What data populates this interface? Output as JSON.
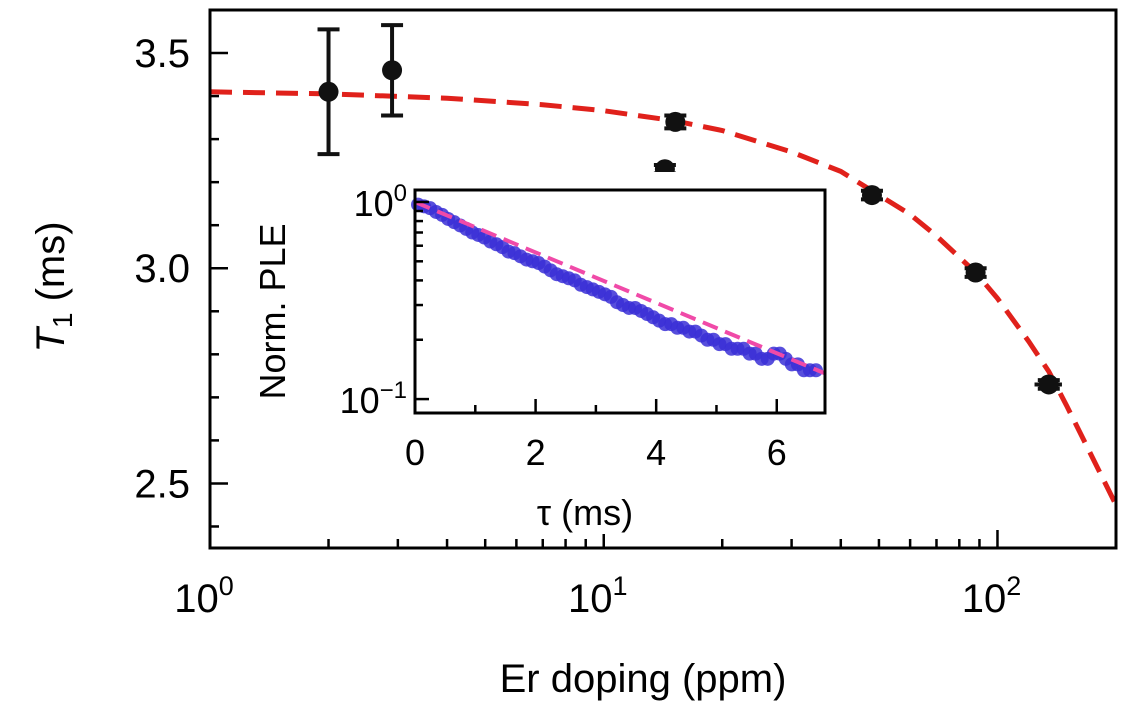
{
  "chart_data": [
    {
      "type": "scatter",
      "xlabel": "Er doping (ppm)",
      "ylabel": "T",
      "ylabel_sub": "1",
      "ylabel_unit": " (ms)",
      "xscale": "log",
      "xlim": [
        1,
        200
      ],
      "ylim": [
        2.35,
        3.6
      ],
      "x_ticks": [
        {
          "base": "10",
          "exp": "0",
          "value": 1
        },
        {
          "base": "10",
          "exp": "1",
          "value": 10
        },
        {
          "base": "10",
          "exp": "2",
          "value": 100
        }
      ],
      "y_ticks": [
        {
          "label": "2.5",
          "value": 2.5
        },
        {
          "label": "3.0",
          "value": 3.0
        },
        {
          "label": "3.5",
          "value": 3.5
        }
      ],
      "series": [
        {
          "kind": "points",
          "color": "#111111",
          "x": [
            2.0,
            2.9,
            14.3,
            15.2,
            48,
            88,
            135
          ],
          "y": [
            3.41,
            3.46,
            3.23,
            3.34,
            3.17,
            2.99,
            2.73
          ],
          "yerr": [
            0.145,
            0.105,
            0.01,
            0.015,
            0.01,
            0.01,
            0.01
          ],
          "xerr_frac": [
            0,
            0,
            0.05,
            0.05,
            0.05,
            0.05,
            0.08
          ]
        },
        {
          "kind": "fit",
          "color": "#e0211b",
          "x": [
            1,
            2,
            4,
            7,
            10,
            15,
            20,
            30,
            40,
            50,
            60,
            70,
            88,
            100,
            120,
            135,
            150,
            170,
            200
          ],
          "y": [
            3.41,
            3.405,
            3.395,
            3.38,
            3.366,
            3.343,
            3.32,
            3.27,
            3.225,
            3.17,
            3.125,
            3.075,
            2.99,
            2.93,
            2.83,
            2.76,
            2.68,
            2.58,
            2.45
          ]
        }
      ]
    },
    {
      "type": "scatter",
      "inset": true,
      "xlabel": "τ (ms)",
      "ylabel": "Norm. PLE",
      "yscale": "log",
      "xlim": [
        0,
        6.8
      ],
      "ylim": [
        0.085,
        1.15
      ],
      "x_ticks": [
        {
          "label": "0",
          "value": 0
        },
        {
          "label": "2",
          "value": 2
        },
        {
          "label": "4",
          "value": 4
        },
        {
          "label": "6",
          "value": 6
        }
      ],
      "y_ticks": [
        {
          "base": "10",
          "exp": "0",
          "value": 1
        },
        {
          "base": "10",
          "exp": "−1",
          "value": 0.1
        }
      ],
      "series": [
        {
          "kind": "points",
          "color": "#3a2fd6",
          "x": [
            0.05,
            0.15,
            0.25,
            0.35,
            0.45,
            0.55,
            0.65,
            0.75,
            0.85,
            0.95,
            1.05,
            1.15,
            1.25,
            1.35,
            1.45,
            1.55,
            1.65,
            1.75,
            1.85,
            1.95,
            2.05,
            2.15,
            2.25,
            2.35,
            2.45,
            2.55,
            2.65,
            2.75,
            2.85,
            2.95,
            3.05,
            3.15,
            3.25,
            3.35,
            3.45,
            3.55,
            3.65,
            3.75,
            3.85,
            3.95,
            4.05,
            4.15,
            4.25,
            4.35,
            4.45,
            4.55,
            4.65,
            4.75,
            4.85,
            4.95,
            5.05,
            5.15,
            5.25,
            5.35,
            5.45,
            5.55,
            5.65,
            5.75,
            5.85,
            5.95,
            6.05,
            6.15,
            6.25,
            6.35,
            6.45,
            6.55,
            6.65
          ],
          "y": [
            0.97,
            0.95,
            0.93,
            0.89,
            0.86,
            0.82,
            0.79,
            0.76,
            0.73,
            0.7,
            0.68,
            0.66,
            0.63,
            0.61,
            0.59,
            0.56,
            0.55,
            0.53,
            0.51,
            0.5,
            0.49,
            0.47,
            0.45,
            0.43,
            0.42,
            0.41,
            0.4,
            0.38,
            0.37,
            0.36,
            0.35,
            0.34,
            0.33,
            0.31,
            0.3,
            0.29,
            0.29,
            0.28,
            0.27,
            0.26,
            0.25,
            0.24,
            0.24,
            0.23,
            0.23,
            0.22,
            0.22,
            0.21,
            0.2,
            0.2,
            0.19,
            0.19,
            0.18,
            0.18,
            0.18,
            0.17,
            0.17,
            0.16,
            0.16,
            0.17,
            0.17,
            0.16,
            0.15,
            0.15,
            0.14,
            0.14,
            0.14
          ]
        },
        {
          "kind": "fit",
          "color": "#f04aa8",
          "x": [
            0,
            6.8
          ],
          "y": [
            1.0,
            0.135
          ]
        }
      ]
    }
  ]
}
